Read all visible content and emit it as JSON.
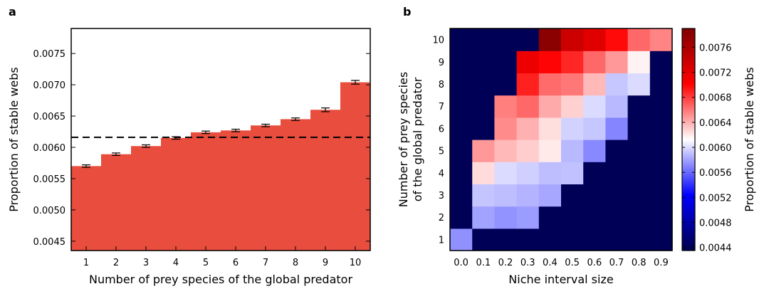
{
  "chart_data": [
    {
      "panel_label": "a",
      "type": "bar",
      "categories": [
        "1",
        "2",
        "3",
        "4",
        "5",
        "6",
        "7",
        "8",
        "9",
        "10"
      ],
      "values": [
        0.0057,
        0.00589,
        0.00602,
        0.00615,
        0.00624,
        0.00627,
        0.00635,
        0.00645,
        0.0066,
        0.00704
      ],
      "errors": [
        2e-05,
        2e-05,
        2e-05,
        2e-05,
        2e-05,
        2e-05,
        2e-05,
        2e-05,
        3e-05,
        3e-05
      ],
      "reference_line": 0.00616,
      "xlabel": "Number of prey species of the global predator",
      "ylabel": "Proportion of stable webs",
      "ylim": [
        0.00435,
        0.0079
      ],
      "yticks": [
        "0.0045",
        "0.0050",
        "0.0055",
        "0.0060",
        "0.0065",
        "0.0070",
        "0.0075"
      ],
      "ytick_values": [
        0.0045,
        0.005,
        0.0055,
        0.006,
        0.0065,
        0.007,
        0.0075
      ],
      "bar_color": "#e84d3d"
    },
    {
      "panel_label": "b",
      "type": "heatmap",
      "x": [
        "0.0",
        "0.1",
        "0.2",
        "0.3",
        "0.4",
        "0.5",
        "0.6",
        "0.7",
        "0.8",
        "0.9"
      ],
      "y": [
        "1",
        "2",
        "3",
        "4",
        "5",
        "6",
        "7",
        "8",
        "9",
        "10"
      ],
      "xlabel": "Niche interval size",
      "ylabel_lines": [
        "Number of prey species",
        "of the global predator"
      ],
      "colorbar_label": "Proportion of stable webs",
      "colorbar_range": [
        0.00435,
        0.0079
      ],
      "colorbar_ticks": [
        "0.0044",
        "0.0048",
        "0.0052",
        "0.0056",
        "0.0060",
        "0.0064",
        "0.0068",
        "0.0072",
        "0.0076"
      ],
      "colorbar_tick_values": [
        0.0044,
        0.0048,
        0.0052,
        0.0056,
        0.006,
        0.0064,
        0.0068,
        0.0072,
        0.0076
      ],
      "values": [
        [
          0.00574,
          0.0044,
          0.0044,
          0.0044,
          0.0044,
          0.0044,
          0.0044,
          0.0044,
          0.0044,
          0.0044
        ],
        [
          0.0044,
          0.0058,
          0.00575,
          0.00578,
          0.0044,
          0.0044,
          0.0044,
          0.0044,
          0.0044,
          0.0044
        ],
        [
          0.0044,
          0.00592,
          0.0059,
          0.00586,
          0.00582,
          0.0044,
          0.0044,
          0.0044,
          0.0044,
          0.0044
        ],
        [
          0.0044,
          0.00625,
          0.006,
          0.00596,
          0.0059,
          0.00591,
          0.0044,
          0.0044,
          0.0044,
          0.0044
        ],
        [
          0.0044,
          0.00648,
          0.00637,
          0.0063,
          0.0062,
          0.00588,
          0.00571,
          0.0044,
          0.0044,
          0.0044
        ],
        [
          0.0044,
          0.0044,
          0.00653,
          0.0064,
          0.00624,
          0.00597,
          0.00593,
          0.0057,
          0.0044,
          0.0044
        ],
        [
          0.0044,
          0.0044,
          0.00657,
          0.00665,
          0.00642,
          0.00629,
          0.006,
          0.00588,
          0.0044,
          0.0044
        ],
        [
          0.0044,
          0.0044,
          0.0044,
          0.0069,
          0.00664,
          0.0066,
          0.00637,
          0.00593,
          0.006,
          0.0044
        ],
        [
          0.0044,
          0.0044,
          0.0044,
          0.00712,
          0.007,
          0.00688,
          0.00665,
          0.00648,
          0.00617,
          0.0044
        ],
        [
          0.0044,
          0.0044,
          0.0044,
          0.0044,
          0.00782,
          0.00736,
          0.00722,
          0.00698,
          0.00665,
          0.00655
        ]
      ]
    }
  ]
}
